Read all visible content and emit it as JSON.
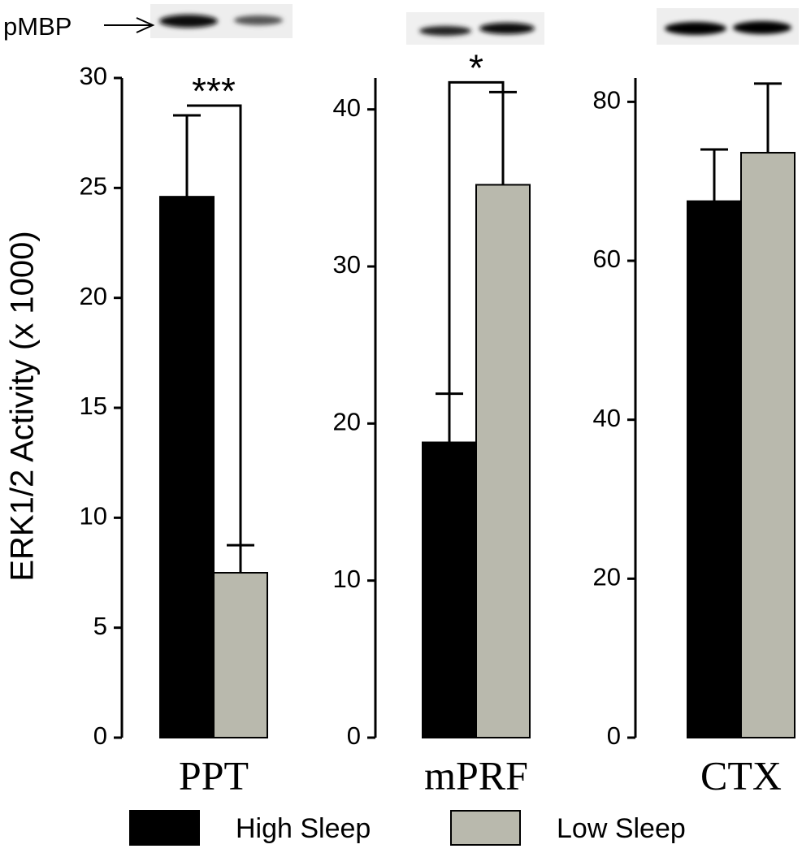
{
  "chart_data": [
    {
      "type": "bar",
      "xlabel": "PPT",
      "ylabel": "ERK1/2 Activity (x 1000)",
      "blot_label": "pMBP",
      "annotation": "***",
      "series": [
        {
          "name": "High Sleep",
          "color": "#000000",
          "values": [
            24.6
          ],
          "errors": [
            3.7
          ]
        },
        {
          "name": "Low Sleep",
          "color": "#b9b9ad",
          "values": [
            7.5
          ],
          "errors": [
            1.25
          ]
        }
      ],
      "ylim": [
        0,
        30
      ],
      "yticks": [
        0,
        5,
        10,
        15,
        20,
        25,
        30
      ]
    },
    {
      "type": "bar",
      "xlabel": "mPRF",
      "annotation": "*",
      "series": [
        {
          "color": "#000000",
          "values": [
            18.8
          ],
          "errors": [
            3.1
          ]
        },
        {
          "color": "#b9b9ad",
          "values": [
            35.2
          ],
          "errors": [
            5.9
          ]
        }
      ],
      "ylim": [
        0,
        42
      ],
      "yticks": [
        0,
        10,
        20,
        30,
        40
      ]
    },
    {
      "type": "bar",
      "xlabel": "CTX",
      "series": [
        {
          "color": "#000000",
          "values": [
            67.5
          ],
          "errors": [
            6.5
          ]
        },
        {
          "color": "#b9b9ad",
          "values": [
            73.6
          ],
          "errors": [
            8.7
          ]
        }
      ],
      "ylim": [
        0,
        83
      ],
      "yticks": [
        0,
        20,
        40,
        60,
        80
      ]
    }
  ]
}
